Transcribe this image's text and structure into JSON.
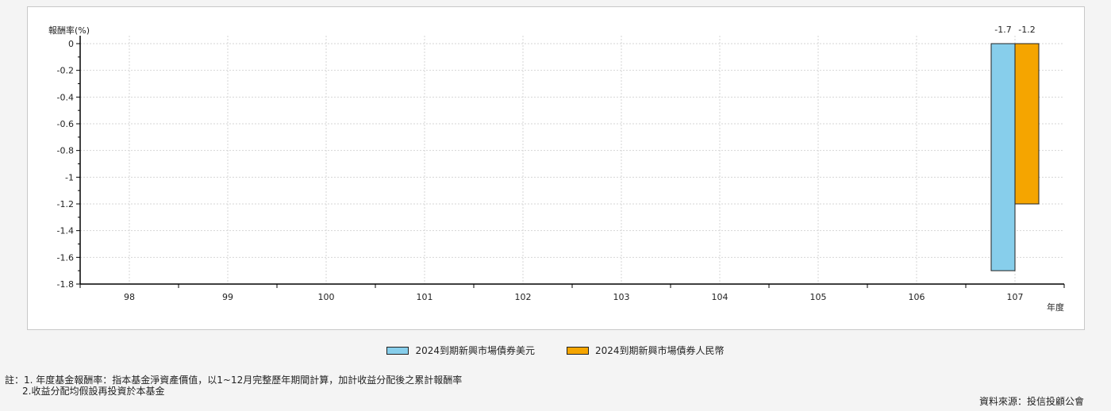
{
  "chart_data": {
    "type": "bar",
    "ylabel": "報酬率(%)",
    "xlabel": "年度",
    "categories": [
      "98",
      "99",
      "100",
      "101",
      "102",
      "103",
      "104",
      "105",
      "106",
      "107"
    ],
    "ylim": [
      -1.8,
      0
    ],
    "yticks": [
      0,
      -0.2,
      -0.4,
      -0.6,
      -0.8,
      -1,
      -1.2,
      -1.4,
      -1.6,
      -1.8
    ],
    "grid": true,
    "legend_position": "bottom",
    "series": [
      {
        "name": "2024到期新興市場債券美元",
        "color": "#87ceeb",
        "values": [
          null,
          null,
          null,
          null,
          null,
          null,
          null,
          null,
          null,
          -1.7
        ]
      },
      {
        "name": "2024到期新興市場債券人民幣",
        "color": "#f5a500",
        "values": [
          null,
          null,
          null,
          null,
          null,
          null,
          null,
          null,
          null,
          -1.2
        ]
      }
    ],
    "data_labels": [
      "-1.7",
      "-1.2"
    ]
  },
  "notes": {
    "line1": "註：1. 年度基金報酬率：指本基金淨資產價值，以1~12月完整歷年期間計算，加計收益分配後之累計報酬率",
    "line2": "2.收益分配均假設再投資於本基金"
  },
  "source": "資料來源：投信投顧公會"
}
